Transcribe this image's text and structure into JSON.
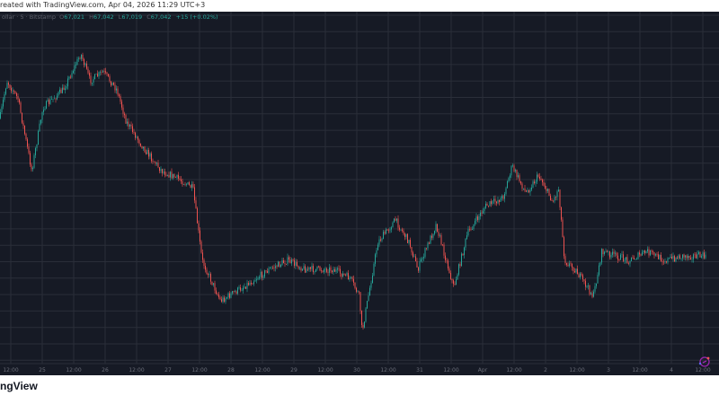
{
  "header": {
    "caption": "reated with TradingView.com, Apr 04, 2026 11:29 UTC+3"
  },
  "legend": {
    "symbol": "ollar · 5 · Bitstamp",
    "open_label": "O",
    "open": "67,021",
    "high_label": "H",
    "high": "67,042",
    "low_label": "L",
    "low": "67,019",
    "close_label": "C",
    "close": "67,042",
    "change": "+15 (+0.02%)"
  },
  "footer": {
    "brand": "ngView"
  },
  "colors": {
    "background": "#161a25",
    "grid": "#2a2e39",
    "up": "#26a69a",
    "down": "#ef5350",
    "logo": "#9c27b0"
  },
  "chart_data": {
    "type": "candlestick",
    "interval": "5",
    "exchange": "Bitstamp",
    "grid": true,
    "x_tick_labels": [
      "12:00",
      "25",
      "12:00",
      "26",
      "12:00",
      "27",
      "12:00",
      "28",
      "12:00",
      "29",
      "12:00",
      "30",
      "12:00",
      "31",
      "12:00",
      "Apr",
      "12:00",
      "2",
      "12:00",
      "3",
      "12:00",
      "4",
      "12:00"
    ],
    "price_path": [
      [
        "2026-03-24T08:00",
        69197
      ],
      [
        "2026-03-24T10:30",
        69753
      ],
      [
        "2026-03-24T14:45",
        69474
      ],
      [
        "2026-03-24T20:00",
        68363
      ],
      [
        "2026-03-25T00:15",
        69336
      ],
      [
        "2026-03-25T08:00",
        69614
      ],
      [
        "2026-03-25T14:45",
        70170
      ],
      [
        "2026-03-25T18:15",
        69753
      ],
      [
        "2026-03-25T23:15",
        69892
      ],
      [
        "2026-03-26T04:30",
        69614
      ],
      [
        "2026-03-26T08:00",
        69127
      ],
      [
        "2026-03-26T14:45",
        68710
      ],
      [
        "2026-03-26T21:30",
        68363
      ],
      [
        "2026-03-27T04:30",
        68224
      ],
      [
        "2026-03-27T09:30",
        68085
      ],
      [
        "2026-03-27T13:00",
        66972
      ],
      [
        "2026-03-27T20:00",
        66347
      ],
      [
        "2026-03-28T04:30",
        66556
      ],
      [
        "2026-03-28T14:45",
        66834
      ],
      [
        "2026-03-28T21:30",
        66972
      ],
      [
        "2026-03-29T04:30",
        66834
      ],
      [
        "2026-03-29T14:45",
        66834
      ],
      [
        "2026-03-29T21:30",
        66695
      ],
      [
        "2026-03-30T01:00",
        66417
      ],
      [
        "2026-03-30T02:00",
        65861
      ],
      [
        "2026-03-30T08:00",
        67251
      ],
      [
        "2026-03-30T14:45",
        67598
      ],
      [
        "2026-03-30T20:00",
        67251
      ],
      [
        "2026-03-30T23:15",
        66834
      ],
      [
        "2026-03-31T06:15",
        67529
      ],
      [
        "2026-03-31T13:00",
        66556
      ],
      [
        "2026-03-31T18:15",
        67390
      ],
      [
        "2026-04-01T01:00",
        67807
      ],
      [
        "2026-04-01T07:45",
        67946
      ],
      [
        "2026-04-01T11:15",
        68432
      ],
      [
        "2026-04-01T16:30",
        68015
      ],
      [
        "2026-04-01T21:30",
        68293
      ],
      [
        "2026-04-02T02:45",
        67876
      ],
      [
        "2026-04-02T05:00",
        68085
      ],
      [
        "2026-04-02T07:15",
        66972
      ],
      [
        "2026-04-02T11:15",
        66834
      ],
      [
        "2026-04-02T18:15",
        66417
      ],
      [
        "2026-04-02T21:30",
        67112
      ],
      [
        "2026-04-03T08:00",
        66972
      ],
      [
        "2026-04-03T14:45",
        67112
      ],
      [
        "2026-04-03T21:30",
        66972
      ],
      [
        "2026-04-04T04:30",
        67042
      ],
      [
        "2026-04-04T13:00",
        67042
      ]
    ]
  }
}
